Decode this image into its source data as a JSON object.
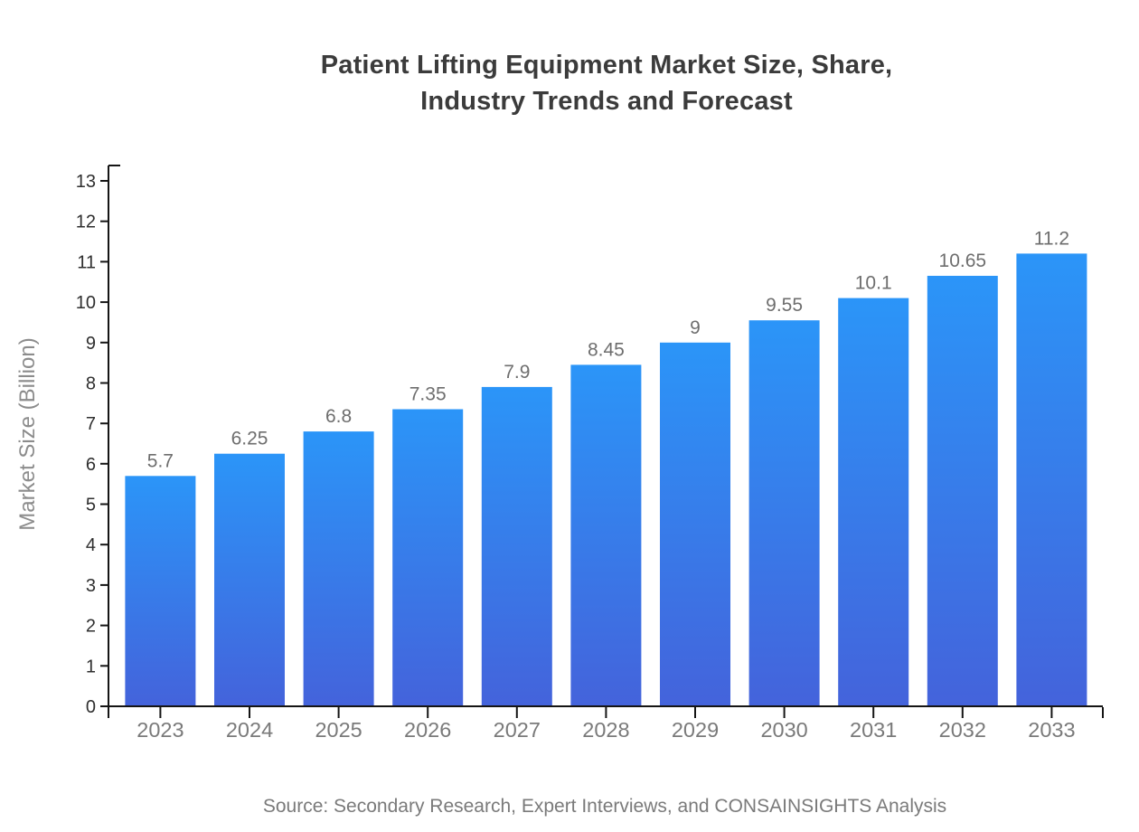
{
  "title": {
    "line1": "Patient Lifting Equipment Market Size, Share,",
    "line2": "Industry Trends and Forecast"
  },
  "source_note": "Source: Secondary Research, Expert Interviews, and CONSAINSIGHTS Analysis",
  "colors": {
    "background": "#ffffff",
    "bar_gradient_top": "#2B95F8",
    "bar_gradient_bottom": "#4463DB",
    "axis": "#151515",
    "ytick_label": "#2f2f2f",
    "xtick_label": "#7a7a7a",
    "bar_value_label": "#6e6e6e",
    "title_text": "#3b3b3b",
    "source_text": "#7a7a7a",
    "ylabel_text": "#8c8c8c"
  },
  "chart_data": {
    "type": "bar",
    "categories": [
      "2023",
      "2024",
      "2025",
      "2026",
      "2027",
      "2028",
      "2029",
      "2030",
      "2031",
      "2032",
      "2033"
    ],
    "values": [
      5.7,
      6.25,
      6.8,
      7.35,
      7.9,
      8.45,
      9,
      9.55,
      10.1,
      10.65,
      11.2
    ],
    "title": "Patient Lifting Equipment Market Size, Share, Industry Trends and Forecast",
    "xlabel": "",
    "ylabel": "Market Size (Billion)",
    "ylim": [
      0,
      13
    ],
    "ytick_step": 1,
    "grid": false,
    "legend": "none",
    "bar_value_labels_shown": true
  }
}
